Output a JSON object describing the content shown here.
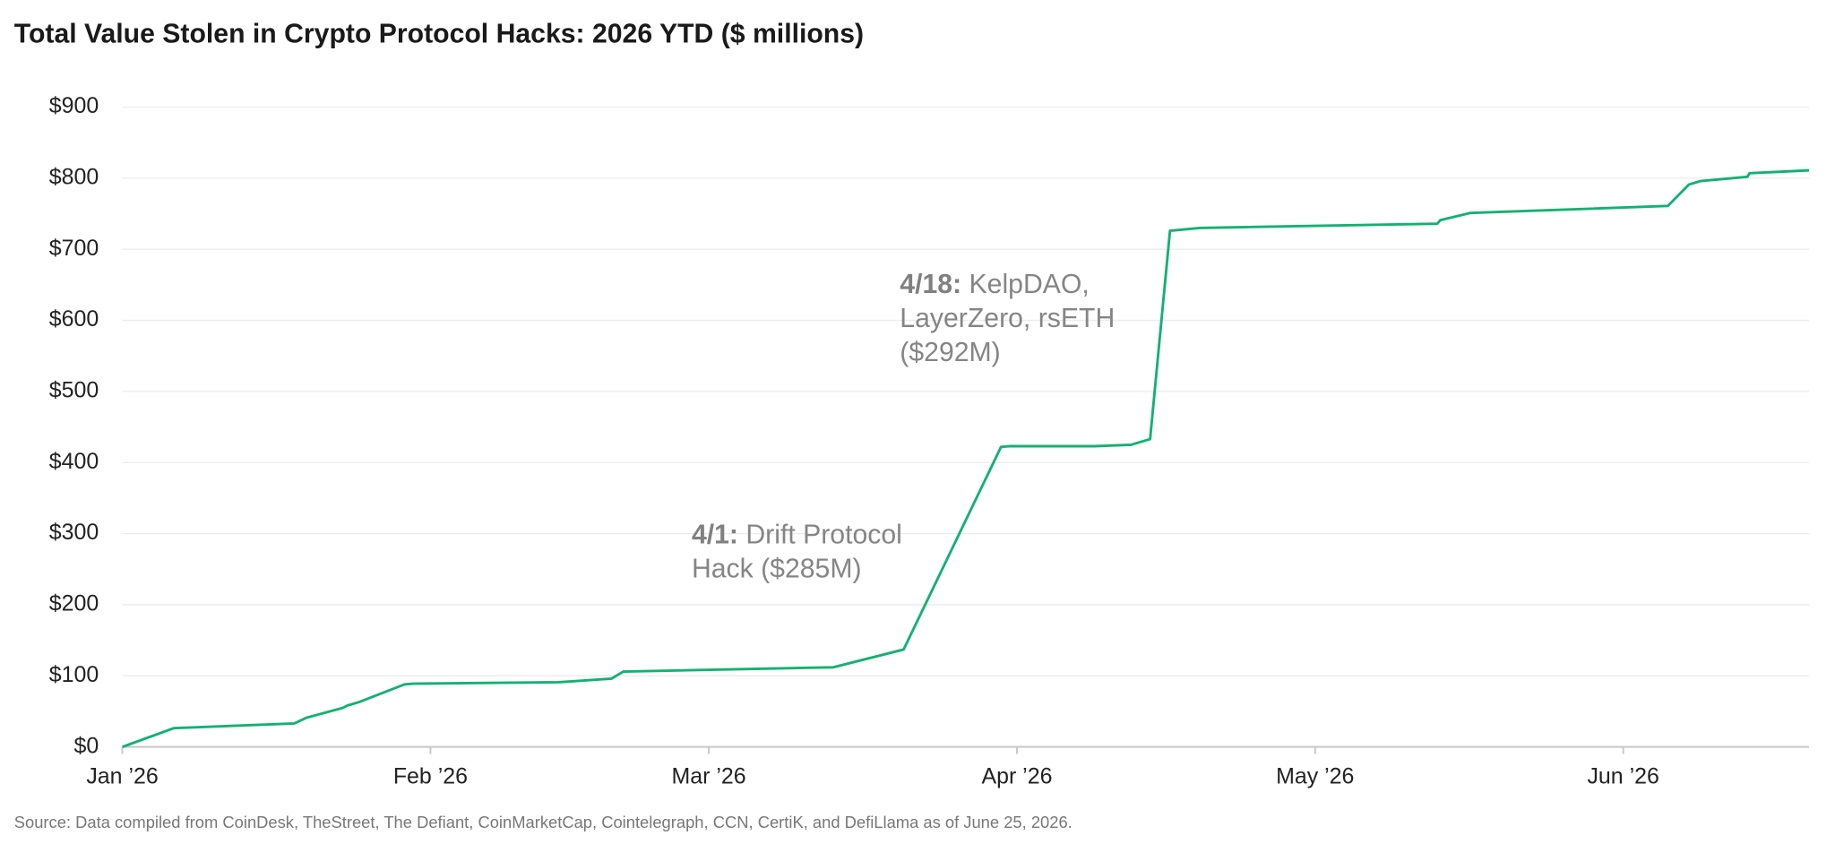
{
  "chart_data": {
    "type": "line",
    "title": "Total Value Stolen in Crypto Protocol Hacks: 2026 YTD ($ millions)",
    "source": "Source: Data compiled from CoinDesk, TheStreet, The Defiant, CoinMarketCap, Cointelegraph, CCN, CertiK, and DefiLlama as of June 25, 2026.",
    "x": [
      0,
      5.2,
      17.3,
      18.5,
      22.2,
      22.6,
      23.8,
      28.4,
      29.3,
      43.9,
      49.2,
      50.4,
      71.5,
      78.6,
      88.4,
      89.2,
      97.8,
      101.5,
      103.4,
      105.4,
      108.4,
      132.3,
      132.6,
      135.6,
      155.5,
      157.6,
      158.8,
      163.5,
      163.7,
      169.7
    ],
    "series": [
      {
        "color": "#13b173",
        "values": [
          0,
          26.5,
          33,
          41,
          55,
          58,
          63,
          88,
          89,
          91,
          96,
          106,
          112,
          137,
          422,
          423,
          423,
          425,
          433,
          726,
          730,
          736,
          741,
          751,
          761,
          791,
          796,
          802,
          807,
          811
        ]
      }
    ],
    "xlim": [
      0,
      169.7
    ],
    "xticks": [
      {
        "value": 0,
        "label": "Jan ’26"
      },
      {
        "value": 31,
        "label": "Feb ’26"
      },
      {
        "value": 59,
        "label": "Mar ’26"
      },
      {
        "value": 90,
        "label": "Apr ’26"
      },
      {
        "value": 120,
        "label": "May ’26"
      },
      {
        "value": 151,
        "label": "Jun ’26"
      }
    ],
    "ylim": [
      0,
      900
    ],
    "yticks": [
      {
        "value": 0,
        "label": "$0"
      },
      {
        "value": 100,
        "label": "$100"
      },
      {
        "value": 200,
        "label": "$200"
      },
      {
        "value": 300,
        "label": "$300"
      },
      {
        "value": 400,
        "label": "$400"
      },
      {
        "value": 500,
        "label": "$500"
      },
      {
        "value": 600,
        "label": "$600"
      },
      {
        "value": 700,
        "label": "$700"
      },
      {
        "value": 800,
        "label": "$800"
      },
      {
        "value": 900,
        "label": "$900"
      }
    ],
    "grid": true,
    "annotations": [
      {
        "label": "4/1:",
        "text": "Drift Protocol Hack ($285M)"
      },
      {
        "label": "4/18:",
        "text": "KelpDAO, LayerZero, rsETH ($292M)"
      }
    ]
  }
}
